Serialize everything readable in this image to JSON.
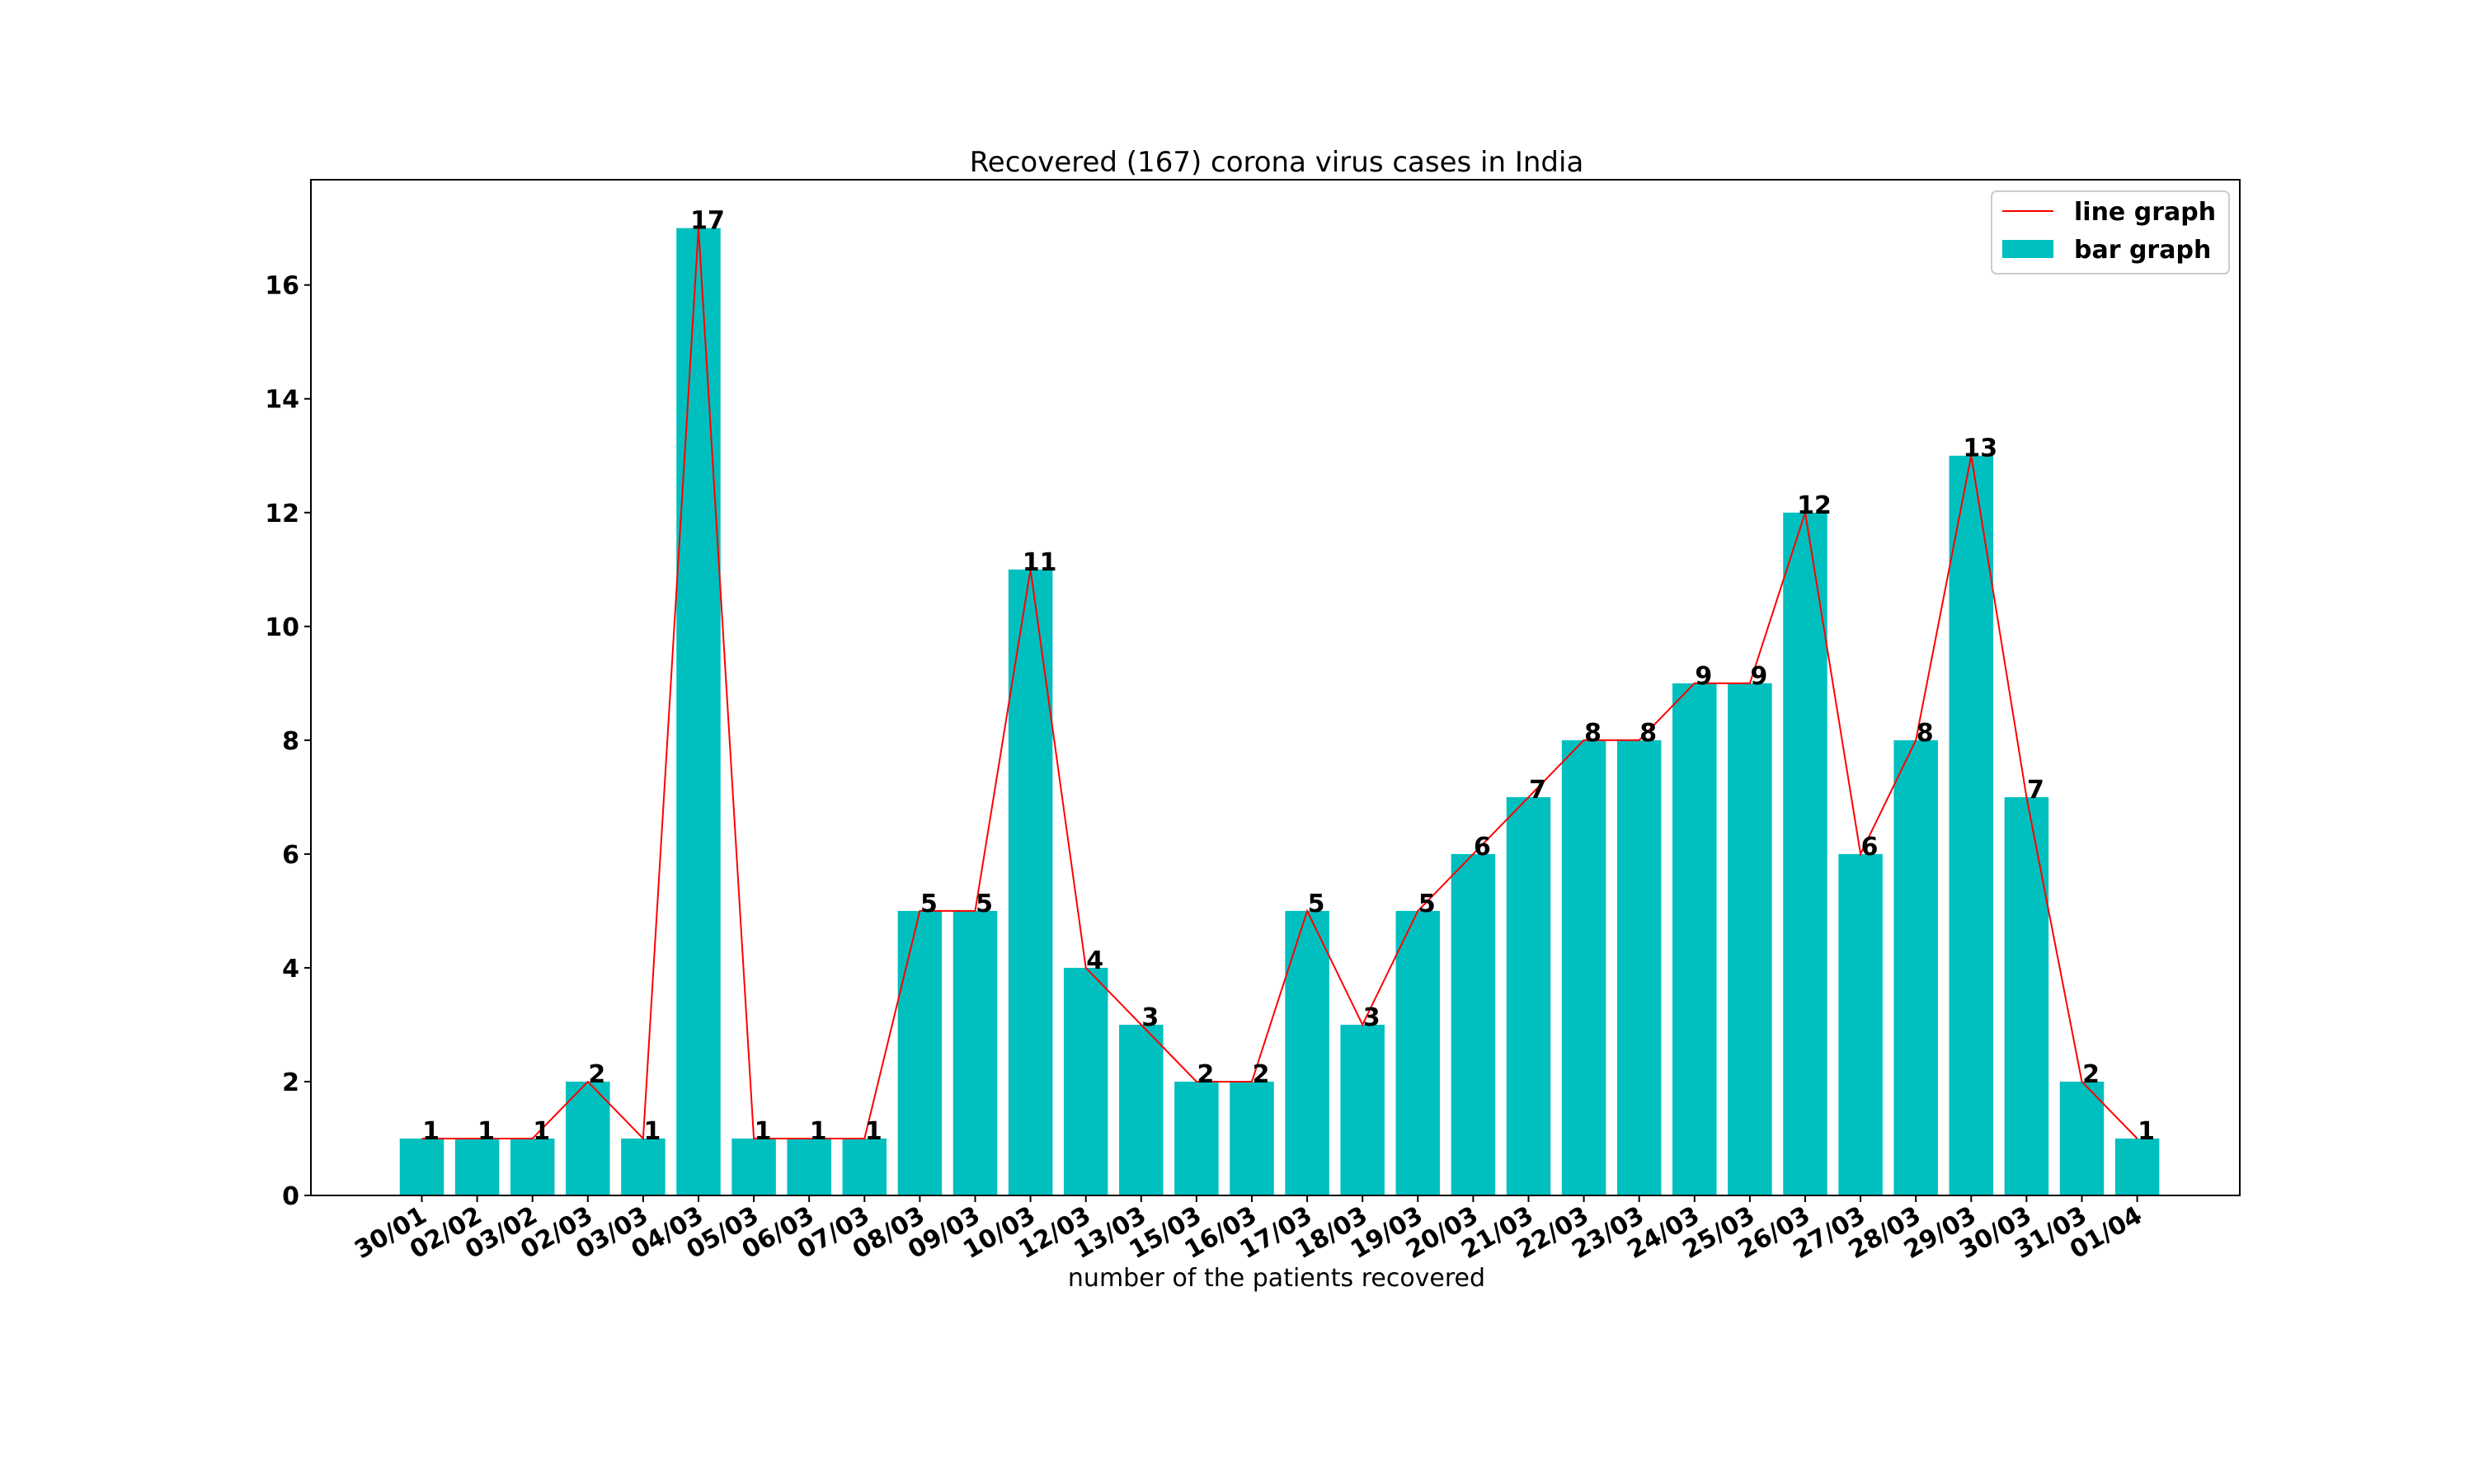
{
  "chart_data": {
    "type": "bar",
    "title": "Recovered (167) corona virus cases in India",
    "xlabel": "number of the patients recovered",
    "ylabel": "",
    "categories": [
      "30/01",
      "02/02",
      "03/02",
      "02/03",
      "03/03",
      "04/03",
      "05/03",
      "06/03",
      "07/03",
      "08/03",
      "09/03",
      "10/03",
      "12/03",
      "13/03",
      "15/03",
      "16/03",
      "17/03",
      "18/03",
      "19/03",
      "20/03",
      "21/03",
      "22/03",
      "23/03",
      "24/03",
      "25/03",
      "26/03",
      "27/03",
      "28/03",
      "29/03",
      "30/03",
      "31/03",
      "01/04"
    ],
    "values": [
      1,
      1,
      1,
      2,
      1,
      17,
      1,
      1,
      1,
      5,
      5,
      11,
      4,
      3,
      2,
      2,
      5,
      3,
      5,
      6,
      7,
      8,
      8,
      9,
      9,
      12,
      6,
      8,
      13,
      7,
      2,
      1
    ],
    "yticks": [
      0,
      2,
      4,
      6,
      8,
      10,
      12,
      14,
      16
    ],
    "ylim": [
      0,
      17.85
    ],
    "grid": false,
    "legend": {
      "placement": "top-right",
      "line_label": "line graph",
      "bar_label": "bar graph"
    },
    "colors": {
      "bar": "#00bfbf",
      "line": "#ff0000"
    }
  }
}
